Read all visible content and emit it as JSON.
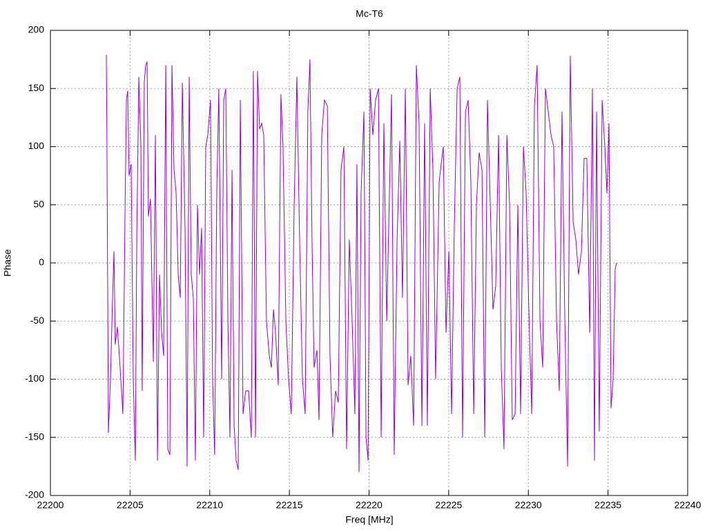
{
  "chart_data": {
    "type": "line",
    "title": "Mc-T6",
    "xlabel": "Freq [MHz]",
    "ylabel": "Phase",
    "xlim": [
      22200,
      22240
    ],
    "xticks": [
      22200,
      22205,
      22210,
      22215,
      22220,
      22225,
      22230,
      22235,
      22240
    ],
    "ylim": [
      -200,
      200
    ],
    "yticks": [
      -200,
      -150,
      -100,
      -50,
      0,
      50,
      100,
      150,
      200
    ],
    "grid": true,
    "x": [
      22203.51,
      22203.55,
      22203.64,
      22203.77,
      22203.9,
      22203.99,
      22204.07,
      22204.2,
      22204.33,
      22204.55,
      22204.68,
      22204.77,
      22204.85,
      22204.94,
      22205.07,
      22205.2,
      22205.33,
      22205.42,
      22205.55,
      22205.68,
      22205.76,
      22205.89,
      22205.98,
      22206.07,
      22206.15,
      22206.28,
      22206.46,
      22206.59,
      22206.72,
      22206.85,
      22206.98,
      22207.11,
      22207.24,
      22207.37,
      22207.5,
      22207.63,
      22207.76,
      22207.89,
      22208.02,
      22208.15,
      22208.28,
      22208.45,
      22208.58,
      22208.71,
      22208.84,
      22208.97,
      22209.1,
      22209.23,
      22209.36,
      22209.49,
      22209.62,
      22209.75,
      22209.88,
      22210.05,
      22210.18,
      22210.31,
      22210.44,
      22210.57,
      22210.75,
      22210.88,
      22211.01,
      22211.14,
      22211.27,
      22211.4,
      22211.53,
      22211.66,
      22211.79,
      22211.92,
      22212.09,
      22212.26,
      22212.44,
      22212.61,
      22212.74,
      22212.87,
      22213.0,
      22213.13,
      22213.26,
      22213.39,
      22213.56,
      22213.74,
      22213.87,
      22214.0,
      22214.13,
      22214.3,
      22214.47,
      22214.6,
      22214.78,
      22214.95,
      22215.12,
      22215.3,
      22215.47,
      22215.64,
      22215.82,
      22215.99,
      22216.16,
      22216.29,
      22216.42,
      22216.55,
      22216.73,
      22216.86,
      22217.03,
      22217.2,
      22217.38,
      22217.55,
      22217.72,
      22217.9,
      22218.07,
      22218.24,
      22218.42,
      22218.59,
      22218.76,
      22218.94,
      22219.11,
      22219.24,
      22219.37,
      22219.5,
      22219.68,
      22219.81,
      22219.94,
      22220.07,
      22220.24,
      22220.41,
      22220.59,
      22220.76,
      22220.93,
      22221.11,
      22221.28,
      22221.41,
      22221.58,
      22221.76,
      22221.93,
      22222.1,
      22222.28,
      22222.45,
      22222.62,
      22222.8,
      22222.97,
      22223.14,
      22223.32,
      22223.49,
      22223.66,
      22223.84,
      22224.01,
      22224.18,
      22224.4,
      22224.66,
      22224.83,
      22225.01,
      22225.18,
      22225.35,
      22225.53,
      22225.7,
      22225.87,
      22226.05,
      22226.22,
      22226.39,
      22226.57,
      22226.74,
      22226.91,
      22227.09,
      22227.26,
      22227.43,
      22227.61,
      22227.78,
      22227.95,
      22228.13,
      22228.3,
      22228.47,
      22228.65,
      22228.82,
      22228.99,
      22229.17,
      22229.34,
      22229.51,
      22229.69,
      22229.86,
      22230.03,
      22230.21,
      22230.38,
      22230.55,
      22230.73,
      22230.9,
      22231.07,
      22231.25,
      22231.42,
      22231.59,
      22231.77,
      22231.94,
      22232.11,
      22232.29,
      22232.46,
      22232.63,
      22232.81,
      22232.98,
      22233.15,
      22233.33,
      22233.5,
      22233.67,
      22233.85,
      22234.02,
      22234.15,
      22234.28,
      22234.45,
      22234.63,
      22234.8,
      22234.93,
      22235.06,
      22235.19,
      22235.32,
      22235.45,
      22235.54
    ],
    "series": [
      {
        "color": "#9400d3",
        "values": [
          179,
          100,
          -146,
          -100,
          -30,
          10,
          -70,
          -55,
          -80,
          -130,
          40,
          140,
          148,
          75,
          85,
          -100,
          -170,
          20,
          160,
          100,
          -110,
          155,
          170,
          173,
          40,
          55,
          -85,
          110,
          -170,
          -10,
          -60,
          -80,
          170,
          -160,
          -165,
          170,
          80,
          60,
          -10,
          -30,
          155,
          30,
          -175,
          160,
          -10,
          -30,
          -170,
          50,
          -10,
          30,
          -150,
          100,
          110,
          140,
          -100,
          -165,
          60,
          150,
          -100,
          140,
          150,
          -50,
          -150,
          80,
          -140,
          -170,
          -178,
          140,
          -130,
          -110,
          -110,
          -150,
          165,
          -150,
          165,
          115,
          120,
          110,
          -50,
          -80,
          -90,
          -40,
          -60,
          -105,
          145,
          100,
          -50,
          -100,
          -130,
          50,
          160,
          20,
          -100,
          -130,
          130,
          175,
          20,
          -90,
          -75,
          -135,
          110,
          140,
          135,
          -80,
          -150,
          -110,
          -120,
          80,
          100,
          -160,
          20,
          -50,
          -130,
          85,
          -180,
          60,
          130,
          -150,
          -170,
          150,
          110,
          140,
          150,
          -150,
          120,
          -50,
          60,
          145,
          -165,
          20,
          105,
          -30,
          150,
          -105,
          -80,
          -140,
          170,
          120,
          -140,
          120,
          -140,
          150,
          80,
          -100,
          70,
          100,
          -60,
          10,
          -130,
          30,
          150,
          160,
          -150,
          130,
          140,
          70,
          -130,
          50,
          95,
          80,
          -150,
          140,
          50,
          -40,
          -20,
          110,
          -90,
          -160,
          110,
          50,
          -135,
          -130,
          50,
          -130,
          100,
          60,
          -40,
          -130,
          135,
          170,
          -50,
          -90,
          150,
          130,
          110,
          100,
          -50,
          -110,
          130,
          -50,
          -175,
          178,
          35,
          20,
          -10,
          10,
          90,
          90,
          -60,
          150,
          -170,
          130,
          -145,
          140,
          100,
          60,
          120,
          -125,
          -100,
          -5,
          0
        ]
      }
    ]
  }
}
